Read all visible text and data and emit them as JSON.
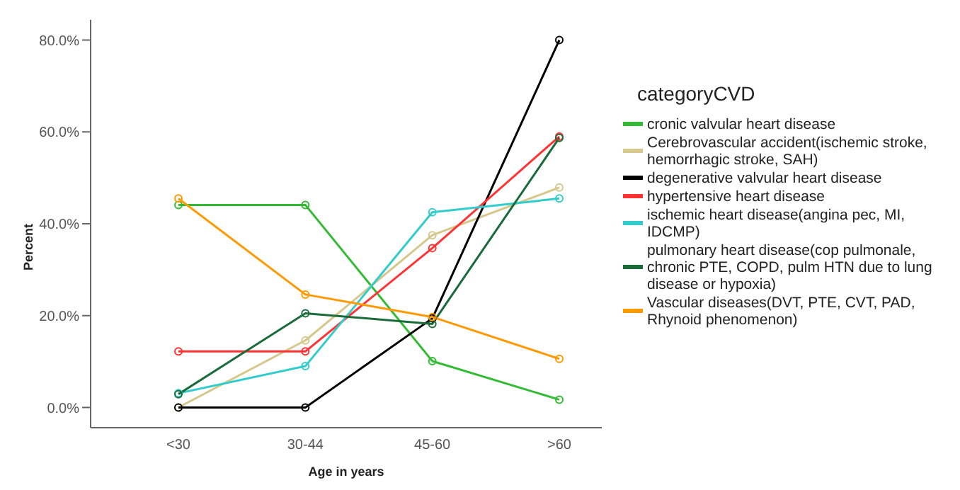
{
  "chart_data": {
    "type": "line",
    "xlabel": "Age in years",
    "ylabel": "Percent",
    "legend_title": "categoryCVD",
    "legend": "right",
    "marker": "circle",
    "grid": false,
    "categories": [
      "<30",
      "30-44",
      "45-60",
      ">60"
    ],
    "ylim": [
      -4.4,
      84.4
    ],
    "yticks": [
      {
        "value": 0,
        "label": "0.0%"
      },
      {
        "value": 20,
        "label": "20.0%"
      },
      {
        "value": 40,
        "label": "40.0%"
      },
      {
        "value": 60,
        "label": "60.0%"
      },
      {
        "value": 80,
        "label": "80.0%"
      }
    ],
    "series": [
      {
        "name": "cronic valvular heart disease",
        "color": "#33bb33",
        "values": [
          44.1,
          44.1,
          10.1,
          1.7
        ]
      },
      {
        "name": "Cerebrovascular accident(ischemic stroke, hemorrhagic stroke, SAH)",
        "color": "#d4c88c",
        "values": [
          0,
          14.6,
          37.5,
          47.9
        ]
      },
      {
        "name": "degenerative valvular heart disease",
        "color": "#000000",
        "values": [
          0,
          0,
          19.4,
          80
        ]
      },
      {
        "name": "hypertensive heart disease",
        "color": "#ff3333",
        "values": [
          12.2,
          12.2,
          34.7,
          59.0
        ]
      },
      {
        "name": "ischemic heart disease(angina pec, MI, IDCMP)",
        "color": "#33cccc",
        "values": [
          3.1,
          9.0,
          42.5,
          45.5
        ]
      },
      {
        "name": "pulmonary heart disease(cop pulmonale, chronic PTE, COPD, pulm HTN due to lung disease or hypoxia)",
        "color": "#1a6b3a",
        "values": [
          2.9,
          20.5,
          18.2,
          58.7
        ]
      },
      {
        "name": "Vascular diseases(DVT, PTE, CVT, PAD, Rhynoid phenomenon)",
        "color": "#ff9900",
        "values": [
          45.5,
          24.6,
          19.7,
          10.6
        ]
      }
    ]
  }
}
